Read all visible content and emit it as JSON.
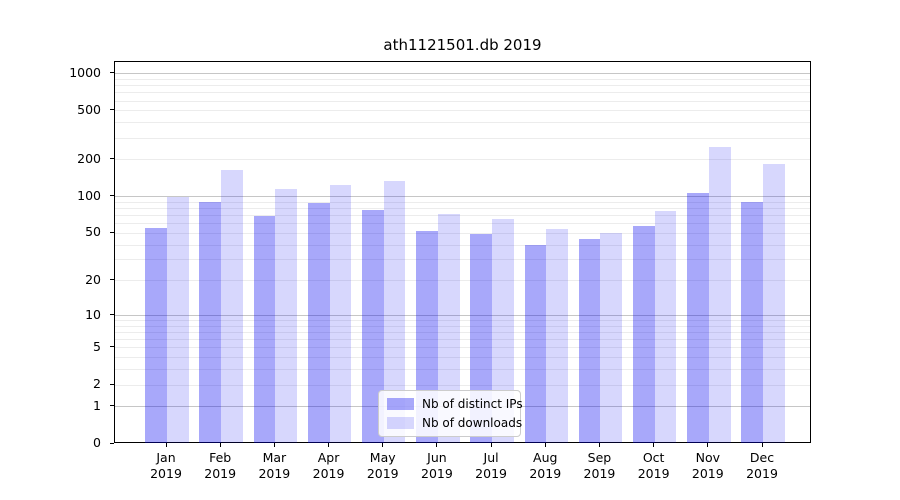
{
  "title": "ath1121501.db 2019",
  "legend": {
    "items": [
      {
        "label": "Nb of distinct IPs"
      },
      {
        "label": "Nb of downloads"
      }
    ]
  },
  "colors": {
    "distinct_ips_bar": "rgba(0,0,240,0.34)",
    "downloads_bar": "rgba(0,0,240,0.155)",
    "major_gridline": "#c6c6c6",
    "minor_gridline": "#ececec",
    "axis": "#000000"
  },
  "chart_data": {
    "type": "bar",
    "title": "ath1121501.db 2019",
    "xlabel": "",
    "ylabel": "",
    "yscale": "log1p",
    "ylim": [
      0,
      1000
    ],
    "y_ticks": [
      0,
      1,
      2,
      5,
      10,
      20,
      50,
      100,
      200,
      500,
      1000
    ],
    "grid": true,
    "legend_position": "lower center",
    "categories": [
      "Jan",
      "Feb",
      "Mar",
      "Apr",
      "May",
      "Jun",
      "Jul",
      "Aug",
      "Sep",
      "Oct",
      "Nov",
      "Dec"
    ],
    "category_year": "2019",
    "series": [
      {
        "name": "Nb of distinct IPs",
        "values": [
          55,
          91,
          69,
          88,
          78,
          52,
          49,
          40,
          45,
          58,
          108,
          91
        ]
      },
      {
        "name": "Nb of downloads",
        "values": [
          100,
          165,
          115,
          125,
          135,
          72,
          66,
          54,
          50,
          76,
          255,
          185
        ]
      }
    ]
  }
}
